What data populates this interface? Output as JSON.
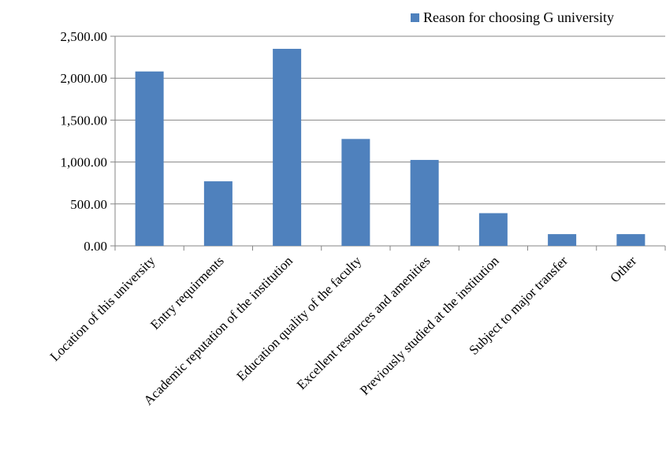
{
  "chart_data": {
    "type": "bar",
    "title": "",
    "xlabel": "",
    "ylabel": "",
    "categories": [
      "Location of this university",
      "Entry requirments",
      "Academic reputation of the institution",
      "Education quality of the faculty",
      "Excellent resources and amenities",
      "Previously studied at the institution",
      "Subject to major transfer",
      "Other"
    ],
    "series": [
      {
        "name": "Reason for choosing G university",
        "color": "#4F81BD",
        "values": [
          2080,
          770,
          2350,
          1275,
          1025,
          390,
          140,
          140
        ]
      }
    ],
    "ylim": [
      0,
      2500
    ],
    "yticks": [
      0,
      500,
      1000,
      1500,
      2000,
      2500
    ],
    "ytick_labels": [
      "0.00",
      "500.00",
      "1,000.00",
      "1,500.00",
      "2,000.00",
      "2,500.00"
    ],
    "grid": true,
    "legend_position": "top-right"
  }
}
